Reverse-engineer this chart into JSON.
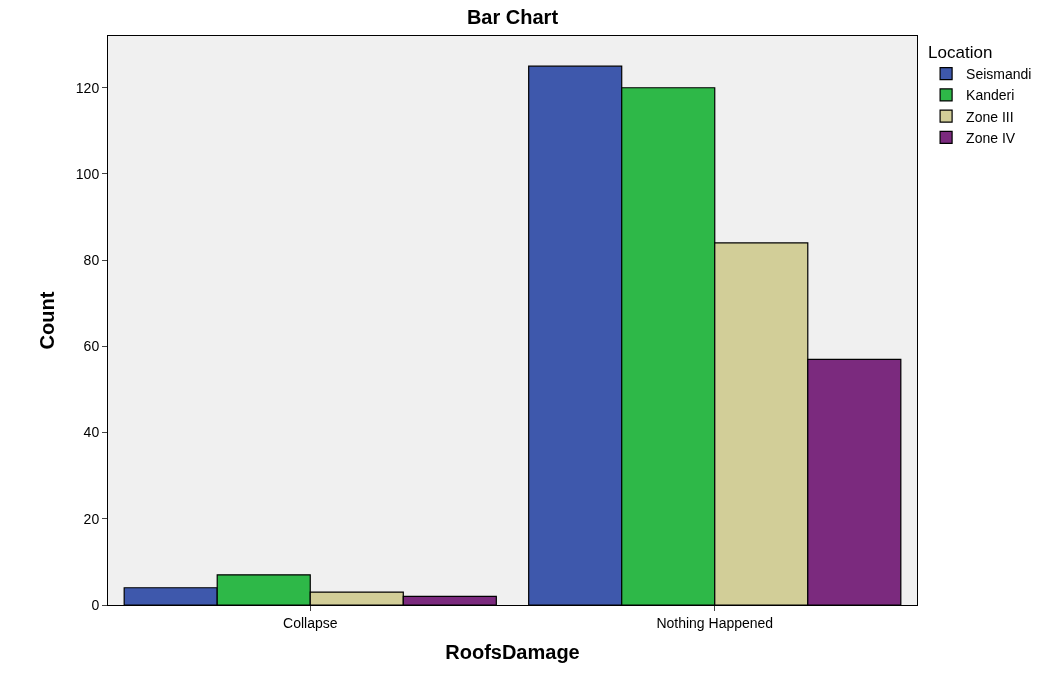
{
  "chart_data": {
    "type": "bar",
    "title": "Bar Chart",
    "xlabel": "RoofsDamage",
    "ylabel": "Count",
    "legend_title": "Location",
    "categories": [
      "Collapse",
      "Nothing Happened"
    ],
    "series": [
      {
        "name": "Seismandi",
        "color": "#3e58ac",
        "values": [
          4,
          125
        ]
      },
      {
        "name": "Kanderi",
        "color": "#2eb848",
        "values": [
          7,
          120
        ]
      },
      {
        "name": "Zone III",
        "color": "#d2ce98",
        "values": [
          3,
          84
        ]
      },
      {
        "name": "Zone IV",
        "color": "#7b2a7e",
        "values": [
          2,
          57
        ]
      }
    ],
    "ylim": [
      0,
      132
    ],
    "yticks": [
      0,
      20,
      40,
      60,
      80,
      100,
      120
    ],
    "grid": false,
    "legend": "top right"
  }
}
